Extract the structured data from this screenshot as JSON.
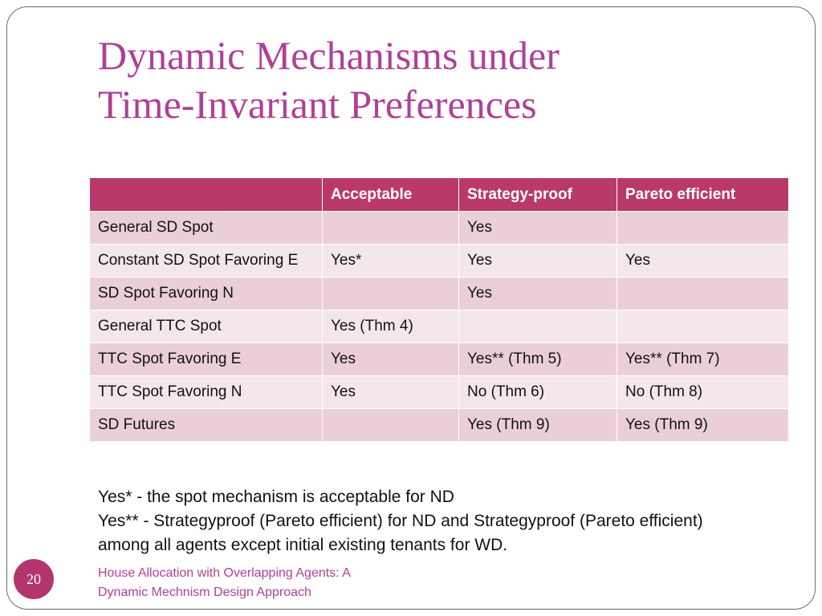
{
  "slide": {
    "title_lines": [
      "Dynamic Mechanisms under",
      "Time-Invariant Preferences"
    ],
    "table": {
      "headers": [
        "",
        "Acceptable",
        "Strategy-proof",
        "Pareto efficient"
      ],
      "rows": [
        [
          "General SD Spot",
          "",
          "Yes",
          ""
        ],
        [
          "Constant SD Spot Favoring E",
          "Yes*",
          "Yes",
          "Yes"
        ],
        [
          "SD Spot Favoring N",
          "",
          "Yes",
          ""
        ],
        [
          "General TTC Spot",
          "Yes (Thm 4)",
          "",
          ""
        ],
        [
          "TTC Spot Favoring E",
          "Yes",
          "Yes** (Thm 5)",
          "Yes** (Thm 7)"
        ],
        [
          "TTC Spot Favoring N",
          "Yes",
          "No (Thm 6)",
          "No (Thm 8)"
        ],
        [
          "SD Futures",
          "",
          "Yes (Thm 9)",
          "Yes (Thm 9)"
        ]
      ]
    },
    "notes": [
      "Yes* - the spot mechanism is acceptable for ND",
      "Yes** - Strategyproof (Pareto efficient) for ND and Strategyproof (Pareto efficient) among all agents except initial existing tenants for WD."
    ],
    "footer_lines": [
      "House Allocation with Overlapping Agents: A",
      "Dynamic Mechnism Design Approach"
    ],
    "page_number": "20"
  },
  "colors": {
    "title": "#b13f96",
    "header_bg": "#b93a6a",
    "row_dark": "#ead0d6",
    "row_light": "#f4e7ea",
    "badge": "#b33570"
  }
}
